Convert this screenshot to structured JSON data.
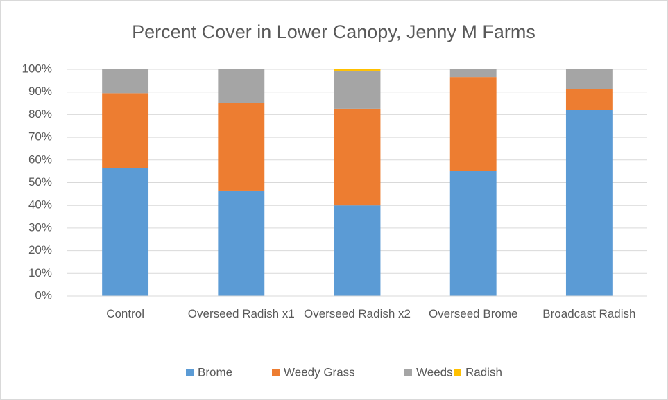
{
  "chart_data": {
    "type": "stacked_bar",
    "title": "Percent Cover in Lower Canopy, Jenny M Farms",
    "categories": [
      "Control",
      "Overseed Radish x1",
      "Overseed Radish x2",
      "Overseed Brome",
      "Broadcast Radish"
    ],
    "series": [
      {
        "name": "Brome",
        "color": "#5b9bd5",
        "values": [
          56.5,
          46.5,
          40,
          55.2,
          82
        ]
      },
      {
        "name": "Weedy Grass",
        "color": "#ed7d31",
        "values": [
          33,
          38.8,
          42.6,
          41.4,
          9.3
        ]
      },
      {
        "name": "Weeds",
        "color": "#a5a5a5",
        "values": [
          10.5,
          14.7,
          16.8,
          3.4,
          8.7
        ]
      },
      {
        "name": "Radish",
        "color": "#ffc000",
        "values": [
          0,
          0,
          0.6,
          0,
          0
        ]
      }
    ],
    "ylim": [
      0,
      100
    ],
    "yticks": [
      {
        "value": 0,
        "label": "0%"
      },
      {
        "value": 10,
        "label": "10%"
      },
      {
        "value": 20,
        "label": "20%"
      },
      {
        "value": 30,
        "label": "30%"
      },
      {
        "value": 40,
        "label": "40%"
      },
      {
        "value": 50,
        "label": "50%"
      },
      {
        "value": 60,
        "label": "60%"
      },
      {
        "value": 70,
        "label": "70%"
      },
      {
        "value": 80,
        "label": "80%"
      },
      {
        "value": 90,
        "label": "90%"
      },
      {
        "value": 100,
        "label": "100%"
      }
    ],
    "grid": true,
    "legend": "bottom"
  }
}
